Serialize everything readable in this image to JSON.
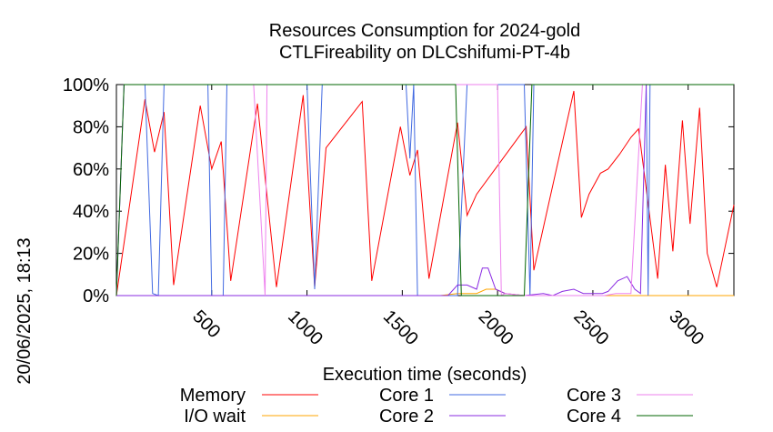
{
  "chart_data": {
    "type": "line",
    "title": "Resources Consumption for 2024-gold",
    "subtitle": "CTLFireability on DLCshifumi-PT-4b",
    "xlabel": "Execution time (seconds)",
    "ylabel": "",
    "xlim": [
      0,
      3240
    ],
    "ylim": [
      0,
      100
    ],
    "x_ticks": [
      500,
      1000,
      1500,
      2000,
      2500,
      3000
    ],
    "x_tick_labels": [
      "500",
      "1000",
      "1500",
      "2000",
      "2500",
      "3000"
    ],
    "y_ticks": [
      0,
      20,
      40,
      60,
      80,
      100
    ],
    "y_tick_labels": [
      "0%",
      "20%",
      "40%",
      "60%",
      "80%",
      "100%"
    ],
    "grid": false,
    "legend_position": "bottom",
    "timestamp": "20/06/2025, 18:13",
    "series": [
      {
        "name": "Memory",
        "color": "#ff0000",
        "points": [
          [
            0,
            0
          ],
          [
            150,
            93
          ],
          [
            200,
            68
          ],
          [
            250,
            87
          ],
          [
            300,
            5
          ],
          [
            440,
            90
          ],
          [
            500,
            60
          ],
          [
            550,
            73
          ],
          [
            600,
            7
          ],
          [
            740,
            91
          ],
          [
            840,
            4
          ],
          [
            980,
            95
          ],
          [
            1040,
            4
          ],
          [
            1100,
            70
          ],
          [
            1290,
            92
          ],
          [
            1340,
            7
          ],
          [
            1490,
            80
          ],
          [
            1540,
            57
          ],
          [
            1580,
            69
          ],
          [
            1640,
            8
          ],
          [
            1790,
            82
          ],
          [
            1840,
            38
          ],
          [
            1890,
            48
          ],
          [
            2150,
            80
          ],
          [
            2190,
            12
          ],
          [
            2400,
            97
          ],
          [
            2440,
            37
          ],
          [
            2480,
            48
          ],
          [
            2540,
            58
          ],
          [
            2580,
            60
          ],
          [
            2640,
            67
          ],
          [
            2700,
            75
          ],
          [
            2740,
            79
          ],
          [
            2840,
            8
          ],
          [
            2880,
            62
          ],
          [
            2920,
            21
          ],
          [
            2970,
            83
          ],
          [
            3010,
            34
          ],
          [
            3060,
            89
          ],
          [
            3100,
            20
          ],
          [
            3150,
            4
          ],
          [
            3240,
            43
          ]
        ]
      },
      {
        "name": "I/O wait",
        "color": "#ffa500",
        "points": [
          [
            0,
            0
          ],
          [
            1700,
            0
          ],
          [
            1790,
            1
          ],
          [
            1840,
            1
          ],
          [
            1890,
            1
          ],
          [
            1940,
            3
          ],
          [
            1990,
            3
          ],
          [
            2040,
            1
          ],
          [
            2140,
            0
          ],
          [
            3240,
            0
          ]
        ]
      },
      {
        "name": "Core 1",
        "color": "#4169e1",
        "points": [
          [
            0,
            0
          ],
          [
            40,
            100
          ],
          [
            150,
            100
          ],
          [
            190,
            1
          ],
          [
            220,
            0
          ],
          [
            250,
            100
          ],
          [
            480,
            100
          ],
          [
            500,
            0
          ],
          [
            560,
            0
          ],
          [
            580,
            100
          ],
          [
            1000,
            100
          ],
          [
            1040,
            3
          ],
          [
            1080,
            100
          ],
          [
            1520,
            100
          ],
          [
            1540,
            65
          ],
          [
            1560,
            100
          ],
          [
            1580,
            0
          ],
          [
            1620,
            0
          ],
          [
            1790,
            0
          ],
          [
            1840,
            100
          ],
          [
            2140,
            100
          ],
          [
            2170,
            0
          ],
          [
            2190,
            100
          ],
          [
            2780,
            100
          ],
          [
            2790,
            0
          ],
          [
            2800,
            100
          ],
          [
            3240,
            100
          ]
        ]
      },
      {
        "name": "Core 2",
        "color": "#8a2be2",
        "points": [
          [
            0,
            0
          ],
          [
            1740,
            0
          ],
          [
            1790,
            5
          ],
          [
            1840,
            5
          ],
          [
            1890,
            3
          ],
          [
            1920,
            13
          ],
          [
            1950,
            13
          ],
          [
            1990,
            3
          ],
          [
            2040,
            1
          ],
          [
            2140,
            0
          ],
          [
            2240,
            1
          ],
          [
            2290,
            0
          ],
          [
            2340,
            2
          ],
          [
            2400,
            3
          ],
          [
            2450,
            1
          ],
          [
            2500,
            1
          ],
          [
            2550,
            1
          ],
          [
            2580,
            2
          ],
          [
            2630,
            7
          ],
          [
            2680,
            9
          ],
          [
            2720,
            3
          ],
          [
            2750,
            1
          ],
          [
            2780,
            100
          ],
          [
            3240,
            100
          ]
        ]
      },
      {
        "name": "Core 3",
        "color": "#ee82ee",
        "points": [
          [
            0,
            0
          ],
          [
            40,
            100
          ],
          [
            720,
            100
          ],
          [
            780,
            0
          ],
          [
            790,
            100
          ],
          [
            1940,
            100
          ],
          [
            2000,
            100
          ],
          [
            2020,
            0
          ],
          [
            2040,
            1
          ],
          [
            2140,
            0
          ],
          [
            2560,
            0
          ],
          [
            2620,
            1
          ],
          [
            2700,
            1
          ],
          [
            2760,
            100
          ],
          [
            3240,
            100
          ]
        ]
      },
      {
        "name": "Core 4",
        "color": "#006400",
        "points": [
          [
            0,
            0
          ],
          [
            40,
            100
          ],
          [
            1780,
            100
          ],
          [
            1810,
            0
          ],
          [
            2140,
            0
          ],
          [
            2180,
            100
          ],
          [
            3240,
            100
          ]
        ]
      }
    ]
  }
}
